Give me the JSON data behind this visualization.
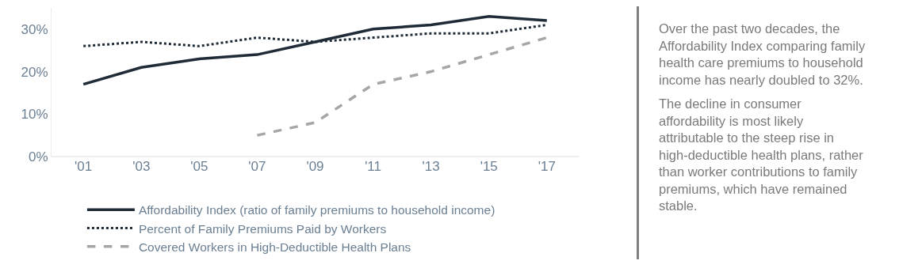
{
  "chart_data": {
    "type": "line",
    "categories": [
      "'01",
      "'03",
      "'05",
      "'07",
      "'09",
      "'11",
      "'13",
      "'15",
      "'17"
    ],
    "series": [
      {
        "name": "Affordability Index (ratio of family premiums to household income)",
        "color": "#1f2b36",
        "line_style": "solid",
        "values": [
          17,
          21,
          23,
          24,
          27,
          30,
          31,
          33,
          32
        ]
      },
      {
        "name": "Percent of Family Premiums Paid by Workers",
        "color": "#1f2b36",
        "line_style": "dotted",
        "values": [
          26,
          27,
          26,
          28,
          27,
          28,
          29,
          29,
          31
        ]
      },
      {
        "name": "Covered Workers in High-Deductible Health Plans",
        "color": "#a6a6a6",
        "line_style": "dashed",
        "values": [
          null,
          null,
          null,
          5,
          8,
          17,
          20,
          24,
          28
        ]
      }
    ],
    "ylim": [
      0,
      35
    ],
    "yticks": [
      {
        "value": 0,
        "label": "0%"
      },
      {
        "value": 10,
        "label": "10%"
      },
      {
        "value": 20,
        "label": "20%"
      },
      {
        "value": 30,
        "label": "30%"
      }
    ],
    "grid": false,
    "legend": "bottom",
    "marker": "none",
    "annotations": [
      "Over the past two decades, the Affordability Index comparing family health care premiums to household income has nearly doubled to 32%.",
      "The decline in consumer affordability is most likely attributable to the steep rise in high-deductible health plans, rather than worker contributions to family premiums, which have remained stable."
    ]
  }
}
